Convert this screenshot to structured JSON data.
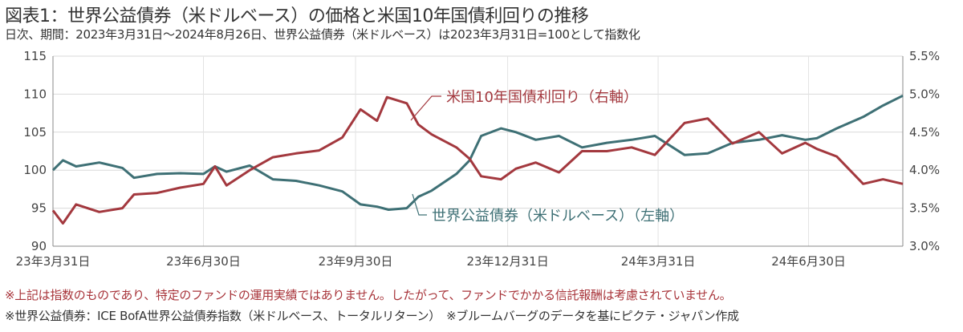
{
  "title": "図表1：世界公益債券（米ドルベース）の価格と米国10年国債利回りの推移",
  "subtitle": "日次、期間：2023年3月31日～2024年8月26日、世界公益債券（米ドルベース）は2023年3月31日=100として指数化",
  "notes": [
    "※上記は指数のものであり、特定のファンドの運用実績ではありません。したがって、ファンドでかかる信託報酬は考慮されていません。",
    "※世界公益債券：ICE BofA世界公益債券指数（米ドルベース、トータルリターン）　※ブルームバーグのデータを基にピクテ・ジャパン作成"
  ],
  "chart_data": {
    "type": "line",
    "grid": true,
    "x_ticks": [
      "23年3月31日",
      "23年6月30日",
      "23年9月30日",
      "23年12月31日",
      "24年3月31日",
      "24年6月30日"
    ],
    "x_tick_dates": [
      "2023-03-31",
      "2023-06-30",
      "2023-09-30",
      "2023-12-31",
      "2024-03-31",
      "2024-06-30"
    ],
    "xlim": [
      "2023-03-31",
      "2024-08-26"
    ],
    "y_left": {
      "ylim": [
        90,
        115
      ],
      "ticks": [
        "90",
        "95",
        "100",
        "105",
        "110",
        "115"
      ]
    },
    "y_right": {
      "ylim": [
        3.0,
        5.5
      ],
      "ticks": [
        "3.0%",
        "3.5%",
        "4.0%",
        "4.5%",
        "5.0%",
        "5.5%"
      ]
    },
    "series": [
      {
        "name": "世界公益債券（米ドルベース）（左軸）",
        "axis": "left",
        "color": "#3e7075",
        "dates": [
          "2023-03-31",
          "2023-04-06",
          "2023-04-14",
          "2023-04-28",
          "2023-05-12",
          "2023-05-19",
          "2023-06-02",
          "2023-06-16",
          "2023-06-30",
          "2023-07-07",
          "2023-07-14",
          "2023-07-28",
          "2023-08-11",
          "2023-08-25",
          "2023-09-08",
          "2023-09-22",
          "2023-10-03",
          "2023-10-13",
          "2023-10-20",
          "2023-10-31",
          "2023-11-07",
          "2023-11-15",
          "2023-11-30",
          "2023-12-08",
          "2023-12-15",
          "2023-12-27",
          "2024-01-05",
          "2024-01-17",
          "2024-01-31",
          "2024-02-14",
          "2024-02-29",
          "2024-03-15",
          "2024-03-29",
          "2024-04-16",
          "2024-04-30",
          "2024-05-15",
          "2024-05-31",
          "2024-06-14",
          "2024-06-28",
          "2024-07-05",
          "2024-07-17",
          "2024-08-02",
          "2024-08-14",
          "2024-08-26"
        ],
        "values": [
          100,
          101.3,
          100.5,
          101,
          100.3,
          99,
          99.5,
          99.6,
          99.5,
          100.5,
          99.8,
          100.6,
          98.8,
          98.6,
          98,
          97.2,
          95.5,
          95.2,
          94.8,
          95,
          96.5,
          97.3,
          99.5,
          101.3,
          104.5,
          105.5,
          105,
          104,
          104.5,
          103,
          103.6,
          104,
          104.5,
          102,
          102.2,
          103.6,
          104,
          104.6,
          104,
          104.2,
          105.5,
          107,
          108.5,
          109.8
        ]
      },
      {
        "name": "米国10年国債利回り（右軸）",
        "axis": "right",
        "color": "#a3383e",
        "dates": [
          "2023-03-31",
          "2023-04-06",
          "2023-04-14",
          "2023-04-28",
          "2023-05-12",
          "2023-05-19",
          "2023-06-02",
          "2023-06-16",
          "2023-06-30",
          "2023-07-07",
          "2023-07-14",
          "2023-07-28",
          "2023-08-11",
          "2023-08-25",
          "2023-09-08",
          "2023-09-22",
          "2023-10-03",
          "2023-10-13",
          "2023-10-19",
          "2023-10-31",
          "2023-11-07",
          "2023-11-15",
          "2023-11-30",
          "2023-12-08",
          "2023-12-15",
          "2023-12-27",
          "2024-01-05",
          "2024-01-17",
          "2024-01-31",
          "2024-02-14",
          "2024-02-29",
          "2024-03-15",
          "2024-03-29",
          "2024-04-16",
          "2024-04-30",
          "2024-05-15",
          "2024-05-31",
          "2024-06-14",
          "2024-06-28",
          "2024-07-05",
          "2024-07-17",
          "2024-08-02",
          "2024-08-14",
          "2024-08-26"
        ],
        "values": [
          3.47,
          3.3,
          3.55,
          3.45,
          3.5,
          3.68,
          3.7,
          3.77,
          3.82,
          4.05,
          3.8,
          4.0,
          4.17,
          4.22,
          4.26,
          4.43,
          4.8,
          4.65,
          4.96,
          4.88,
          4.6,
          4.47,
          4.3,
          4.15,
          3.92,
          3.88,
          4.02,
          4.1,
          3.97,
          4.25,
          4.25,
          4.3,
          4.2,
          4.62,
          4.68,
          4.35,
          4.5,
          4.22,
          4.36,
          4.28,
          4.18,
          3.82,
          3.88,
          3.82
        ]
      }
    ],
    "annotations": [
      "米国10年国債利回り（右軸）",
      "世界公益債券（米ドルベース）（左軸）"
    ]
  }
}
